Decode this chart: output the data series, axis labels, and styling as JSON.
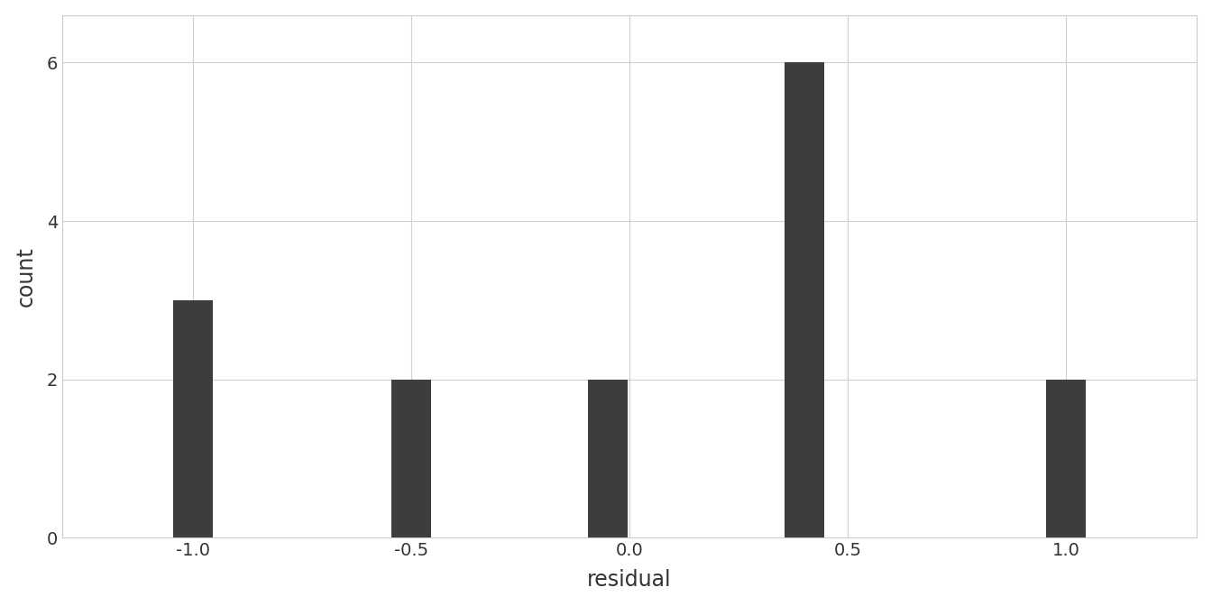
{
  "title": "",
  "xlabel": "residual",
  "ylabel": "count",
  "bar_color": "#3d3d3d",
  "background_color": "#ffffff",
  "panel_background": "#ffffff",
  "grid_color": "#d0d0d0",
  "xlim": [
    -1.3,
    1.3
  ],
  "ylim": [
    0,
    6.6
  ],
  "xticks": [
    -1.0,
    -0.5,
    0.0,
    0.5,
    1.0
  ],
  "yticks": [
    0,
    2,
    4,
    6
  ],
  "bar_centers": [
    -1.0,
    -0.5,
    -0.05,
    0.4,
    1.0
  ],
  "bar_heights": [
    3,
    2,
    2,
    6,
    2
  ],
  "bar_width": 0.09,
  "label_font_size": 17,
  "tick_font_size": 14
}
